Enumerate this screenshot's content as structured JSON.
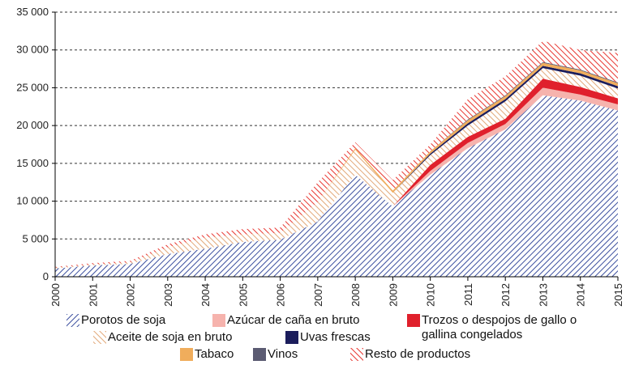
{
  "chart_data": {
    "type": "stacked-area",
    "categories": [
      "2000",
      "2001",
      "2002",
      "2003",
      "2004",
      "2005",
      "2006",
      "2007",
      "2008",
      "2009",
      "2010",
      "2011",
      "2012",
      "2013",
      "2014",
      "2015"
    ],
    "series": [
      {
        "name": "Porotos de soja",
        "color": "#3a4e9e",
        "hatched": true,
        "values": [
          1100,
          1500,
          1700,
          3000,
          3700,
          4600,
          4900,
          7300,
          13500,
          9300,
          13500,
          17000,
          19500,
          24000,
          23300,
          22000
        ]
      },
      {
        "name": "Azúcar de caña en bruto",
        "color": "#f6b3ad",
        "hatched": false,
        "values": [
          0,
          0,
          0,
          0,
          0,
          0,
          0,
          0,
          0,
          0,
          500,
          700,
          700,
          1000,
          800,
          800
        ]
      },
      {
        "name": "Trozos o despojos de gallo o gallina congelados",
        "color": "#e0202c",
        "hatched": false,
        "values": [
          0,
          0,
          0,
          0,
          0,
          0,
          0,
          0,
          0,
          0,
          800,
          800,
          700,
          1200,
          1000,
          800
        ]
      },
      {
        "name": "Aceite de soja en bruto",
        "color": "#e2a878",
        "hatched": true,
        "values": [
          100,
          150,
          200,
          900,
          1500,
          1000,
          900,
          2600,
          3300,
          1800,
          1300,
          1500,
          2300,
          1400,
          1500,
          1300
        ]
      },
      {
        "name": "Uvas frescas",
        "color": "#1b1d5c",
        "hatched": false,
        "values": [
          0,
          0,
          0,
          0,
          0,
          0,
          0,
          0,
          0,
          0,
          200,
          300,
          300,
          300,
          300,
          300
        ]
      },
      {
        "name": "Tabaco",
        "color": "#f0ad5c",
        "hatched": false,
        "values": [
          0,
          0,
          0,
          0,
          0,
          0,
          0,
          0,
          200,
          300,
          300,
          400,
          400,
          400,
          400,
          400
        ]
      },
      {
        "name": "Vinos",
        "color": "#5b5b72",
        "hatched": false,
        "values": [
          0,
          0,
          0,
          0,
          0,
          0,
          0,
          0,
          0,
          0,
          0,
          100,
          100,
          100,
          100,
          100
        ]
      },
      {
        "name": "Resto de productos",
        "color": "#e8352f",
        "hatched": true,
        "values": [
          100,
          150,
          200,
          400,
          400,
          700,
          700,
          2600,
          800,
          1400,
          900,
          2700,
          2500,
          2800,
          2600,
          3900
        ]
      }
    ],
    "ylim": [
      0,
      35000
    ],
    "yticks": [
      0,
      {
        "value": 5000,
        "label": "5 000"
      },
      {
        "value": 10000,
        "label": "10 000"
      },
      {
        "value": 15000,
        "label": "15 000"
      },
      {
        "value": 20000,
        "label": "20 000"
      },
      {
        "value": 25000,
        "label": "25 000"
      },
      {
        "value": 30000,
        "label": "30 000"
      },
      {
        "value": 35000,
        "label": "35 000"
      }
    ],
    "grid": true
  }
}
